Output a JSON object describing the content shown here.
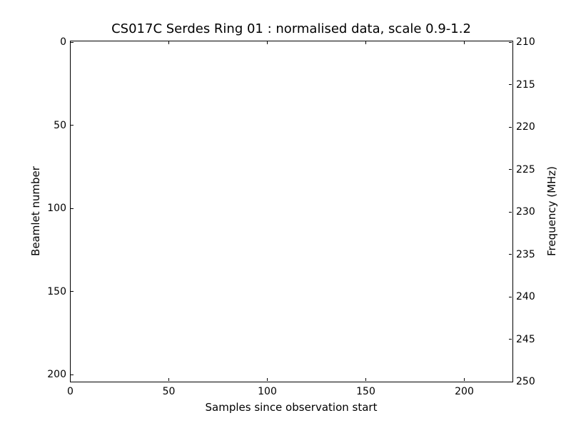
{
  "chart_data": {
    "type": "heatmap",
    "title": "CS017C Serdes Ring 01 : normalised data, scale 0.9-1.2",
    "xlabel": "Samples since observation start",
    "ylabel_left": "Beamlet number",
    "ylabel_right": "Frequency (MHz)",
    "x_ticks": [
      0,
      50,
      100,
      150,
      200
    ],
    "xlim": [
      0,
      225
    ],
    "y_left_ticks": [
      0,
      50,
      100,
      150,
      200
    ],
    "ylim_left": [
      0,
      204
    ],
    "y_left_inverted": true,
    "y_right_ticks": [
      210,
      215,
      220,
      225,
      230,
      235,
      240,
      245,
      250
    ],
    "ylim_right": [
      210,
      250
    ],
    "color_scale_range": [
      0.9,
      1.2
    ],
    "values": [],
    "plot_area_content": "blank white interior, no visible data points",
    "grid": false,
    "legend": false,
    "colors": {
      "background": "#ffffff",
      "frame": "#000000",
      "text": "#000000"
    }
  }
}
